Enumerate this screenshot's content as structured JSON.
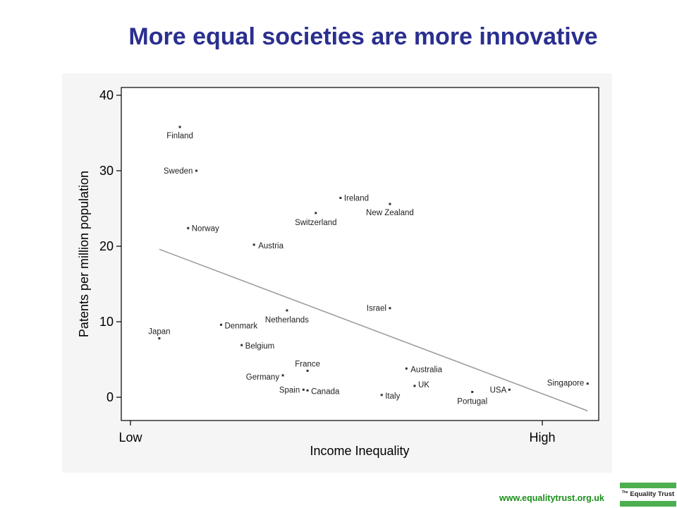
{
  "slide": {
    "title": "More equal societies are more innovative",
    "footer_url": "www.equalitytrust.org.uk",
    "logo_small": "The",
    "logo_text": "Equality Trust"
  },
  "colors": {
    "title": "#2a2f8f",
    "url": "#1a8f1a",
    "logo_green": "#4caf50",
    "trend": "#999999"
  },
  "chart_data": {
    "type": "scatter",
    "title": "More equal societies are more innovative",
    "xlabel": "Income Inequality",
    "ylabel": "Patents per million population",
    "x_tick_labels": [
      "Low",
      "High"
    ],
    "y_ticks": [
      0,
      10,
      20,
      30,
      40
    ],
    "ylim": [
      -3,
      42
    ],
    "grid": false,
    "note": "x positions are relative inequality on an unlabeled scale (0 = Low tick, 100 = High tick)",
    "xlim": [
      -3,
      113
    ],
    "points": [
      {
        "label": "Finland",
        "x": 12,
        "y": 35.8
      },
      {
        "label": "Sweden",
        "x": 16,
        "y": 30.0
      },
      {
        "label": "Norway",
        "x": 14,
        "y": 22.4
      },
      {
        "label": "Austria",
        "x": 30,
        "y": 20.2
      },
      {
        "label": "Switzerland",
        "x": 45,
        "y": 24.4
      },
      {
        "label": "Ireland",
        "x": 51,
        "y": 26.4
      },
      {
        "label": "New Zealand",
        "x": 63,
        "y": 25.6
      },
      {
        "label": "Netherlands",
        "x": 38,
        "y": 11.5
      },
      {
        "label": "Israel",
        "x": 63,
        "y": 11.8
      },
      {
        "label": "Japan",
        "x": 7,
        "y": 7.8
      },
      {
        "label": "Denmark",
        "x": 22,
        "y": 9.6
      },
      {
        "label": "Belgium",
        "x": 27,
        "y": 6.9
      },
      {
        "label": "France",
        "x": 43,
        "y": 3.5
      },
      {
        "label": "Germany",
        "x": 37,
        "y": 2.9
      },
      {
        "label": "Spain",
        "x": 42,
        "y": 1.0
      },
      {
        "label": "Canada",
        "x": 43,
        "y": 0.9
      },
      {
        "label": "Australia",
        "x": 67,
        "y": 3.8
      },
      {
        "label": "UK",
        "x": 69,
        "y": 1.5
      },
      {
        "label": "Italy",
        "x": 61,
        "y": 0.3
      },
      {
        "label": "Portugal",
        "x": 83,
        "y": 0.7
      },
      {
        "label": "USA",
        "x": 92,
        "y": 1.0
      },
      {
        "label": "Singapore",
        "x": 111,
        "y": 1.8
      }
    ],
    "trendline": {
      "x": [
        7,
        111
      ],
      "y": [
        19.6,
        -1.8
      ]
    }
  }
}
